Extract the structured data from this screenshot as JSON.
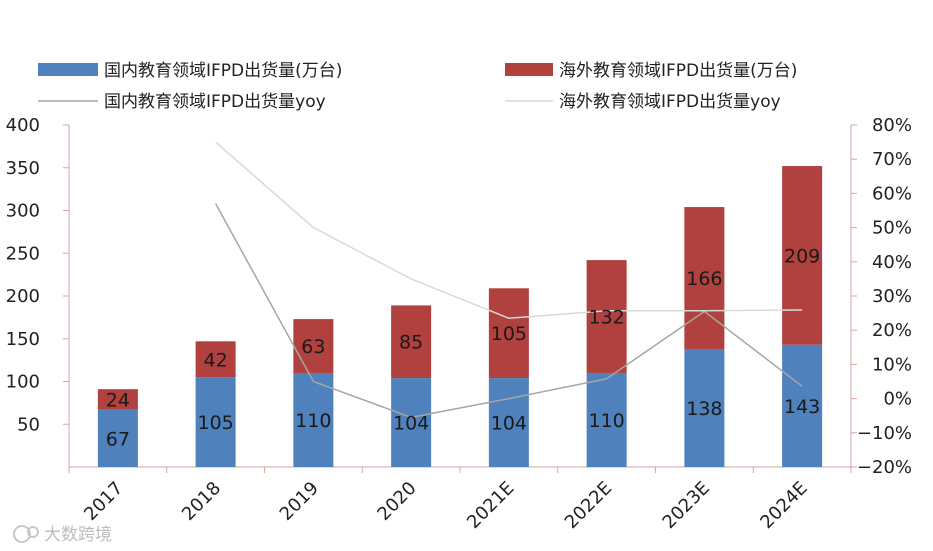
{
  "chart_data": {
    "type": "bar",
    "stacked": true,
    "categories": [
      "2017",
      "2018",
      "2019",
      "2020",
      "2021E",
      "2022E",
      "2023E",
      "2024E"
    ],
    "series": [
      {
        "name": "国内教育领域IFPD出货量(万台)",
        "type": "bar",
        "axis": "left",
        "color": "#4f81bd",
        "values": [
          67,
          105,
          110,
          104,
          104,
          110,
          138,
          143
        ]
      },
      {
        "name": "海外教育领域IFPD出货量(万台)",
        "type": "bar",
        "axis": "left",
        "color": "#b0413e",
        "values": [
          24,
          42,
          63,
          85,
          105,
          132,
          166,
          209
        ]
      },
      {
        "name": "国内教育领域IFPD出货量yoy",
        "type": "line",
        "axis": "right",
        "color": "#a6a6a6",
        "values": [
          null,
          0.57,
          0.05,
          -0.055,
          0.0,
          0.058,
          0.255,
          0.036
        ]
      },
      {
        "name": "海外教育领域IFPD出货量yoy",
        "type": "line",
        "axis": "right",
        "color": "#d9d9d9",
        "values": [
          null,
          0.75,
          0.5,
          0.35,
          0.235,
          0.257,
          0.257,
          0.259
        ]
      }
    ],
    "left_axis": {
      "ylim": [
        0,
        400
      ],
      "ticks": [
        "50",
        "100",
        "150",
        "200",
        "250",
        "300",
        "350",
        "400"
      ],
      "tick_values": [
        50,
        100,
        150,
        200,
        250,
        300,
        350,
        400
      ]
    },
    "right_axis": {
      "ylim": [
        -0.2,
        0.8
      ],
      "ticks": [
        "−20%",
        "−10%",
        "0%",
        "10%",
        "20%",
        "30%",
        "40%",
        "50%",
        "60%",
        "70%",
        "80%"
      ],
      "tick_values": [
        -0.2,
        -0.1,
        0,
        0.1,
        0.2,
        0.3,
        0.4,
        0.5,
        0.6,
        0.7,
        0.8
      ]
    },
    "legend_position": "top",
    "title": "",
    "xlabel": "",
    "ylabel": ""
  },
  "watermark": "大数跨境",
  "colors": {
    "axis": "#d9a3a3",
    "domestic": "#4f81bd",
    "overseas": "#b0413e",
    "domestic_yoy": "#a6a6a6",
    "overseas_yoy": "#d9d9d9"
  }
}
